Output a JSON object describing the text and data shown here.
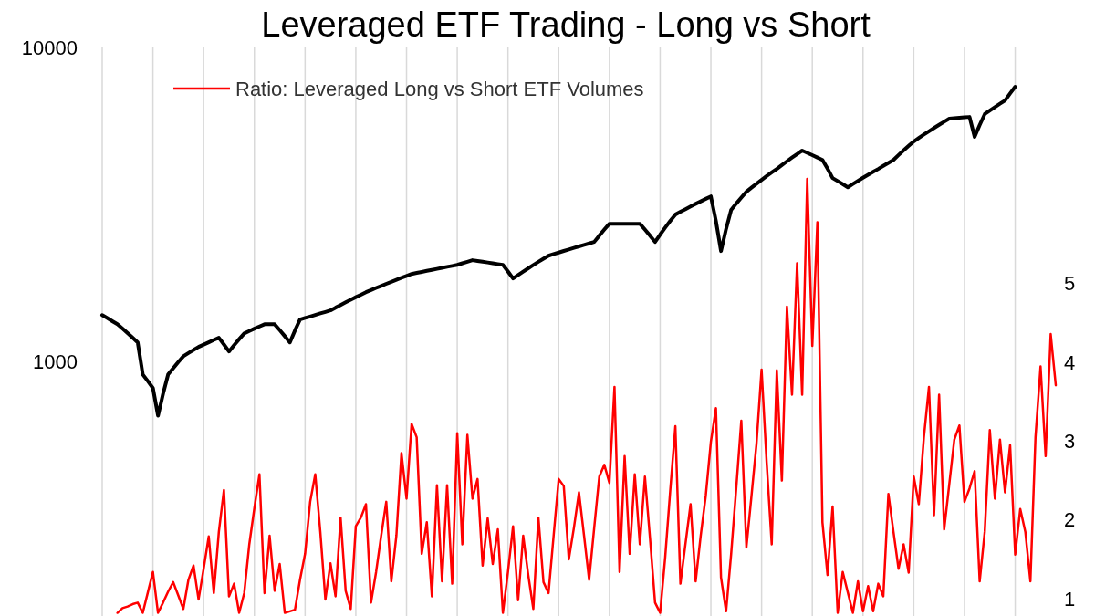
{
  "chart_data": {
    "type": "line",
    "title": "Leveraged ETF Trading - Long vs Short",
    "log": "y",
    "grid": "x",
    "legend": "top left",
    "categories": [
      null,
      null,
      null,
      null,
      null,
      null,
      null,
      null,
      null,
      null,
      null,
      null,
      null,
      null,
      null,
      null,
      null,
      null,
      null,
      null,
      null,
      null,
      null,
      null,
      null,
      null,
      null,
      null,
      null,
      null,
      null,
      null,
      null,
      null,
      null,
      null,
      null,
      null,
      null,
      null,
      null,
      null,
      null,
      null,
      null,
      null,
      null,
      null,
      null,
      null,
      null,
      null,
      null,
      null,
      null,
      null,
      null,
      null,
      null,
      null,
      null,
      null,
      null,
      null,
      null,
      null,
      null,
      null,
      null,
      null,
      null,
      null,
      null,
      null,
      null,
      null,
      null,
      null,
      null,
      null,
      null,
      null,
      null,
      null,
      null,
      null,
      null,
      null,
      null,
      null,
      null,
      null,
      null,
      null,
      null,
      null,
      null,
      null,
      null,
      null,
      null,
      null,
      null,
      null,
      null,
      null,
      null,
      null,
      null,
      null,
      null,
      null,
      null,
      null,
      null,
      null,
      null,
      null,
      null,
      null,
      null,
      null,
      null,
      null,
      null,
      null,
      null,
      null,
      null,
      null,
      null,
      null,
      null,
      null,
      null,
      null,
      null,
      null,
      null,
      null,
      null,
      null,
      null,
      null,
      null,
      null,
      null,
      null,
      null,
      null,
      null,
      null,
      null,
      null,
      null,
      null,
      null,
      null,
      null,
      null,
      null,
      null,
      null,
      null,
      null,
      null,
      null,
      null,
      null,
      null,
      null,
      null,
      null,
      null,
      null,
      null,
      null,
      null,
      null,
      null,
      null,
      null,
      null,
      null,
      null,
      null,
      null,
      null,
      null
    ],
    "ylim": [
      155,
      10000
    ],
    "yticks": [
      1000,
      10000
    ],
    "y2lim": [
      0.78,
      8
    ],
    "y2ticks": [
      1,
      2,
      3,
      4,
      5
    ],
    "series": [
      {
        "color": "#000000",
        "values": [
          1406,
          1376,
          1345,
          1315,
          1274,
          1233,
          1192,
          1151,
          910,
          867,
          824,
          673,
          790,
          910,
          953,
          997,
          1040,
          1065,
          1089,
          1114,
          1133,
          1152,
          1172,
          1191,
          1134,
          1077,
          1128,
          1179,
          1230,
          1251,
          1273,
          1294,
          1315,
          1315,
          1315,
          1260,
          1205,
          1151,
          1256,
          1361,
          1377,
          1392,
          1408,
          1424,
          1439,
          1455,
          1485,
          1514,
          1544,
          1574,
          1604,
          1633,
          1663,
          1689,
          1716,
          1742,
          1769,
          1795,
          1822,
          1848,
          1875,
          1901,
          1916,
          1930,
          1945,
          1959,
          1974,
          1988,
          2003,
          2017,
          2032,
          2056,
          2079,
          2103,
          2091,
          2079,
          2068,
          2056,
          2044,
          2032,
          1936,
          1839,
          1887,
          1935,
          1982,
          2030,
          2078,
          2125,
          2173,
          2199,
          2224,
          2250,
          2276,
          2301,
          2327,
          2353,
          2378,
          2404,
          2519,
          2633,
          2748,
          2748,
          2748,
          2748,
          2748,
          2748,
          2748,
          2633,
          2519,
          2404,
          2538,
          2671,
          2805,
          2938,
          2998,
          3058,
          3118,
          3178,
          3237,
          3297,
          3357,
          2803,
          2248,
          2644,
          3039,
          3184,
          3329,
          3474,
          3579,
          3684,
          3790,
          3895,
          4000,
          4105,
          4223,
          4341,
          4460,
          4578,
          4696,
          4619,
          4541,
          4464,
          4387,
          4114,
          3840,
          3756,
          3673,
          3589,
          3675,
          3761,
          3847,
          3933,
          4019,
          4105,
          4199,
          4293,
          4387,
          4545,
          4704,
          4862,
          5020,
          5150,
          5281,
          5411,
          5541,
          5671,
          5802,
          5932,
          5952,
          5971,
          5991,
          6010,
          5190,
          5664,
          6138,
          6299,
          6459,
          6620,
          6780,
          7140,
          7500,
          null,
          null,
          null,
          null,
          null,
          null,
          null,
          null
        ]
      },
      {
        "name": "Ratio: Leveraged Long vs Short ETF Volumes",
        "color": "#ff0000",
        "axis": "y2",
        "values": [
          null,
          null,
          null,
          0.82,
          0.88,
          0.9,
          0.93,
          0.95,
          0.82,
          1.08,
          1.34,
          0.82,
          0.95,
          1.09,
          1.21,
          1.04,
          0.87,
          1.24,
          1.42,
          0.99,
          1.38,
          1.79,
          1.07,
          1.85,
          2.38,
          1.03,
          1.19,
          0.82,
          1.07,
          1.69,
          2.15,
          2.58,
          1.07,
          1.8,
          1.1,
          1.44,
          0.82,
          0.84,
          0.86,
          1.24,
          1.57,
          2.23,
          2.58,
          1.85,
          0.99,
          1.45,
          1.03,
          2.03,
          1.1,
          0.87,
          1.92,
          2.03,
          2.2,
          0.95,
          1.34,
          1.8,
          2.23,
          1.22,
          1.8,
          2.85,
          2.27,
          3.22,
          3.05,
          1.57,
          1.97,
          1.03,
          2.44,
          1.22,
          2.44,
          1.19,
          3.1,
          1.69,
          3.08,
          2.27,
          2.52,
          1.42,
          2.02,
          1.44,
          1.88,
          0.82,
          1.34,
          1.92,
          0.98,
          1.8,
          1.3,
          0.87,
          2.03,
          1.21,
          1.07,
          1.8,
          2.52,
          2.43,
          1.5,
          1.9,
          2.35,
          1.8,
          1.24,
          1.9,
          2.55,
          2.7,
          2.47,
          3.69,
          1.34,
          2.81,
          1.57,
          2.58,
          1.69,
          2.55,
          1.77,
          0.95,
          0.82,
          1.53,
          2.38,
          3.19,
          1.19,
          1.7,
          2.2,
          1.22,
          1.8,
          2.31,
          2.99,
          3.42,
          1.27,
          0.84,
          1.57,
          2.4,
          3.26,
          1.65,
          2.3,
          2.97,
          3.91,
          2.73,
          1.69,
          3.9,
          2.5,
          4.71,
          3.59,
          5.26,
          3.59,
          6.33,
          4.21,
          5.78,
          1.97,
          1.3,
          2.17,
          0.82,
          1.34,
          1.08,
          0.82,
          1.22,
          0.84,
          1.16,
          0.84,
          1.19,
          1.03,
          2.33,
          1.85,
          1.38,
          1.69,
          1.33,
          2.55,
          2.2,
          3.05,
          3.69,
          2.06,
          3.59,
          1.88,
          2.45,
          3.02,
          3.2,
          2.23,
          2.4,
          2.62,
          1.22,
          1.85,
          3.14,
          2.27,
          3.02,
          2.35,
          2.95,
          1.56,
          2.14,
          1.85,
          1.22,
          3.05,
          3.95,
          2.81,
          4.36,
          3.71
        ]
      }
    ]
  }
}
